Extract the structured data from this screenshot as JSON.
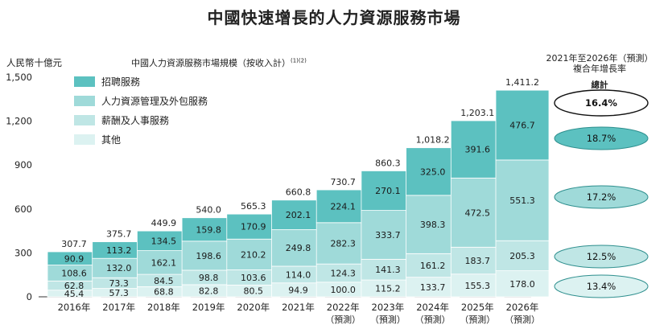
{
  "title": "中國快速增長的人力資源服務市場",
  "subtitle": "中國人力資源服務市場規模（按收入計）",
  "subtitle_note": "(1)(2)",
  "cagr": {
    "header_line1": "2021年至2026年（預測）",
    "header_line2": "複合年增長率",
    "total_label": "總計",
    "items": [
      {
        "label": "16.4%",
        "fill": "#ffffff",
        "name": "total"
      },
      {
        "label": "18.7%",
        "fill": "#5cc1c0",
        "name": "recruitment"
      },
      {
        "label": "17.2%",
        "fill": "#9fdad9",
        "name": "hr-outsourcing"
      },
      {
        "label": "12.5%",
        "fill": "#bfe6e5",
        "name": "payroll-personnel"
      },
      {
        "label": "13.4%",
        "fill": "#dcf2f1",
        "name": "others"
      }
    ]
  },
  "chart_data": {
    "type": "bar",
    "stacked": true,
    "title": "中國人力資源服務市場規模（按收入計）",
    "ylabel": "人民幣十億元",
    "ylim": [
      0,
      1500
    ],
    "yticks": [
      0,
      300,
      600,
      900,
      1200,
      1500
    ],
    "ytick_labels": [
      "0",
      "300",
      "600",
      "900",
      "1,200",
      "1,500"
    ],
    "categories": [
      "2016年",
      "2017年",
      "2018年",
      "2019年",
      "2020年",
      "2021年",
      "2022年",
      "2023年",
      "2024年",
      "2025年",
      "2026年"
    ],
    "category_notes": [
      "",
      "",
      "",
      "",
      "",
      "",
      "（預測）",
      "（預測）",
      "（預測）",
      "（預測）",
      "（預測）"
    ],
    "totals": [
      "307.7",
      "375.7",
      "449.9",
      "540.0",
      "565.3",
      "660.8",
      "730.7",
      "860.3",
      "1,018.2",
      "1,203.1",
      "1,411.2"
    ],
    "series": [
      {
        "name": "其他",
        "color": "#dcf2f1",
        "values": [
          45.4,
          57.3,
          68.8,
          82.8,
          80.5,
          94.9,
          100.0,
          115.2,
          133.7,
          155.3,
          178.0
        ],
        "labels": [
          "45.4",
          "57.3",
          "68.8",
          "82.8",
          "80.5",
          "94.9",
          "100.0",
          "115.2",
          "133.7",
          "155.3",
          "178.0"
        ]
      },
      {
        "name": "薪酬及人事服務",
        "color": "#bfe6e5",
        "values": [
          62.8,
          73.3,
          84.5,
          98.8,
          103.6,
          114.0,
          124.3,
          141.3,
          161.2,
          183.7,
          205.3
        ],
        "labels": [
          "62.8",
          "73.3",
          "84.5",
          "98.8",
          "103.6",
          "114.0",
          "124.3",
          "141.3",
          "161.2",
          "183.7",
          "205.3"
        ]
      },
      {
        "name": "人力資源管理及外包服務",
        "color": "#9fdad9",
        "values": [
          108.6,
          132.0,
          162.1,
          198.6,
          210.2,
          249.8,
          282.3,
          333.7,
          398.3,
          472.5,
          551.3
        ],
        "labels": [
          "108.6",
          "132.0",
          "162.1",
          "198.6",
          "210.2",
          "249.8",
          "282.3",
          "333.7",
          "398.3",
          "472.5",
          "551.3"
        ]
      },
      {
        "name": "招聘服務",
        "color": "#5cc1c0",
        "values": [
          90.9,
          113.2,
          134.5,
          159.8,
          170.9,
          202.1,
          224.1,
          270.1,
          325.0,
          391.6,
          476.7
        ],
        "labels": [
          "90.9",
          "113.2",
          "134.5",
          "159.8",
          "170.9",
          "202.1",
          "224.1",
          "270.1",
          "325.0",
          "391.6",
          "476.7"
        ]
      }
    ],
    "legend": [
      "招聘服務",
      "人力資源管理及外包服務",
      "薪酬及人事服務",
      "其他"
    ],
    "legend_colors": [
      "#5cc1c0",
      "#9fdad9",
      "#bfe6e5",
      "#dcf2f1"
    ],
    "legend_position": "top-left"
  }
}
